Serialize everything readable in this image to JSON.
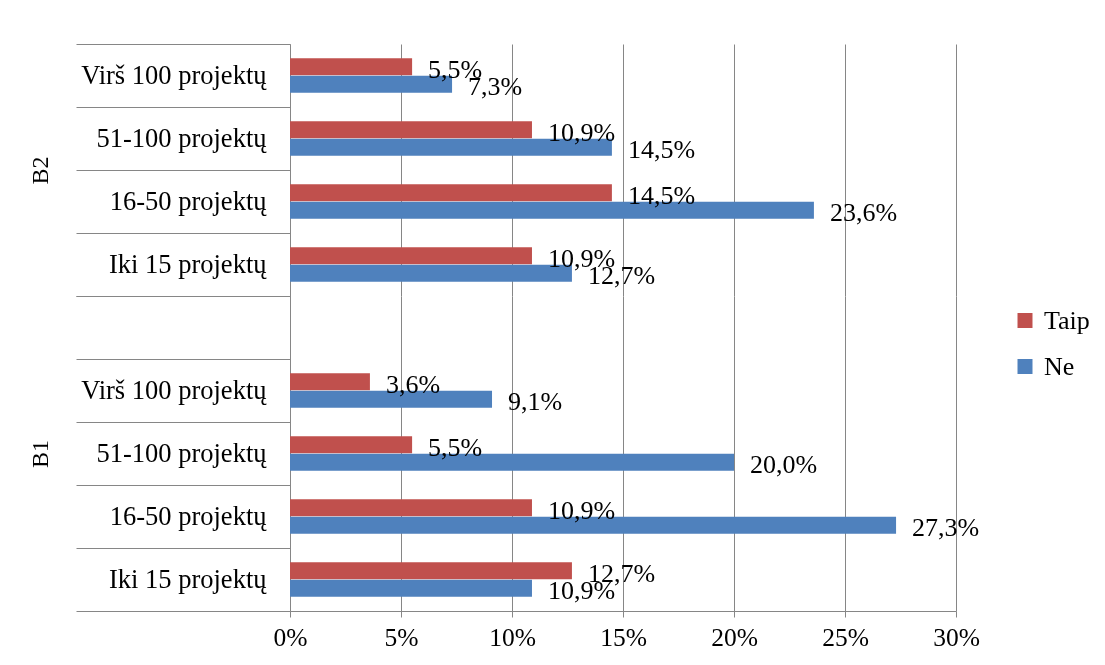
{
  "chart_data": [
    {
      "type": "bar",
      "orientation": "horizontal",
      "ylabel": "B2",
      "categories": [
        "Virš 100 projektų",
        "51-100 projektų",
        "16-50 projektų",
        "Iki 15 projektų"
      ],
      "series": [
        {
          "name": "Taip",
          "color": "#c0504d",
          "values": [
            5.5,
            10.9,
            14.5,
            10.9
          ],
          "value_labels": [
            "5,5%",
            "10,9%",
            "14,5%",
            "10,9%"
          ]
        },
        {
          "name": "Ne",
          "color": "#4f81bd",
          "values": [
            7.3,
            14.5,
            23.6,
            12.7
          ],
          "value_labels": [
            "7,3%",
            "14,5%",
            "23,6%",
            "12,7%"
          ]
        }
      ],
      "xlim": [
        0,
        30
      ],
      "xticks": [
        {
          "value": 0,
          "label": null
        },
        {
          "value": 5,
          "label": null
        },
        {
          "value": 10,
          "label": null
        },
        {
          "value": 15,
          "label": null
        },
        {
          "value": 20,
          "label": null
        },
        {
          "value": 25,
          "label": null
        },
        {
          "value": 30,
          "label": null
        }
      ],
      "grid": "x",
      "tick_labels": "y",
      "legend": "right"
    },
    {
      "type": "bar",
      "orientation": "horizontal",
      "ylabel": "B1",
      "categories": [
        null,
        "Virš 100 projektų",
        "51-100 projektų",
        "16-50 projektų",
        "Iki 15 projektų"
      ],
      "series": [
        {
          "name": "Taip",
          "color": "#c0504d",
          "values": [
            null,
            3.6,
            5.5,
            10.9,
            12.7
          ],
          "value_labels": [
            null,
            "3,6%",
            "5,5%",
            "10,9%",
            "12,7%"
          ]
        },
        {
          "name": "Ne",
          "color": "#4f81bd",
          "values": [
            null,
            9.1,
            20.0,
            27.3,
            10.9
          ],
          "value_labels": [
            null,
            "9,1%",
            "20,0%",
            "27,3%",
            "10,9%"
          ]
        }
      ],
      "xlim": [
        0,
        30
      ],
      "xticks": [
        {
          "value": 0,
          "label": "0%"
        },
        {
          "value": 5,
          "label": "5%"
        },
        {
          "value": 10,
          "label": "10%"
        },
        {
          "value": 15,
          "label": "15%"
        },
        {
          "value": 20,
          "label": "20%"
        },
        {
          "value": 25,
          "label": "25%"
        },
        {
          "value": 30,
          "label": "30%"
        }
      ],
      "grid": "x",
      "legend": "right"
    }
  ]
}
